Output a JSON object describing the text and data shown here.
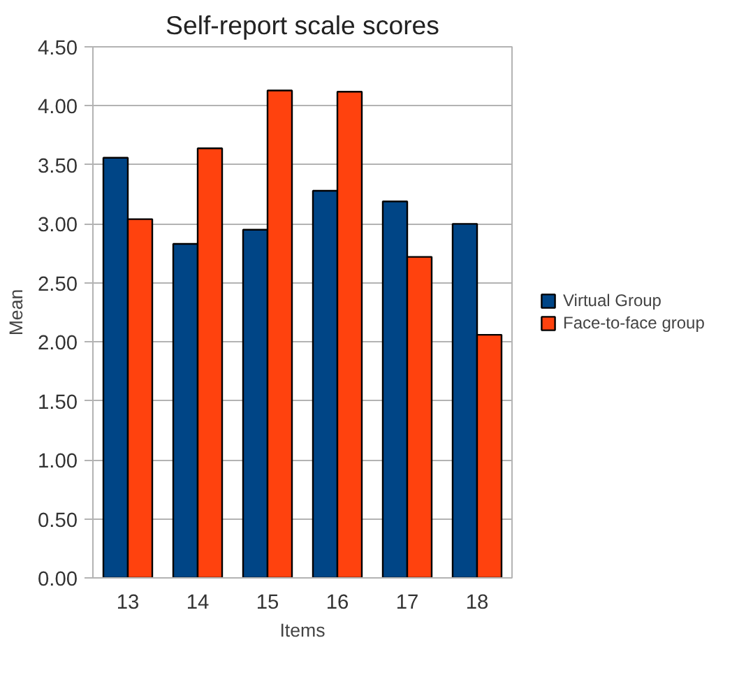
{
  "chart_data": {
    "type": "bar",
    "title": "Self-report scale scores",
    "xlabel": "Items",
    "ylabel": "Mean",
    "categories": [
      "13",
      "14",
      "15",
      "16",
      "17",
      "18"
    ],
    "series": [
      {
        "name": "Virtual Group",
        "color": "#004586",
        "values": [
          3.56,
          2.83,
          2.95,
          3.28,
          3.19,
          3.0
        ]
      },
      {
        "name": "Face-to-face group",
        "color": "#ff420e",
        "values": [
          3.04,
          3.64,
          4.13,
          4.12,
          2.72,
          2.06
        ]
      }
    ],
    "ylim": [
      0,
      4.5
    ],
    "yticks": [
      {
        "value": 0,
        "label": "0.00"
      },
      {
        "value": 0.5,
        "label": "0.50"
      },
      {
        "value": 1,
        "label": "1.00"
      },
      {
        "value": 1.5,
        "label": "1.50"
      },
      {
        "value": 2,
        "label": "2.00"
      },
      {
        "value": 2.5,
        "label": "2.50"
      },
      {
        "value": 3,
        "label": "3.00"
      },
      {
        "value": 3.5,
        "label": "3.50"
      },
      {
        "value": 4,
        "label": "4.00"
      },
      {
        "value": 4.5,
        "label": "4.50"
      }
    ],
    "grid": "y",
    "legend": "right"
  }
}
